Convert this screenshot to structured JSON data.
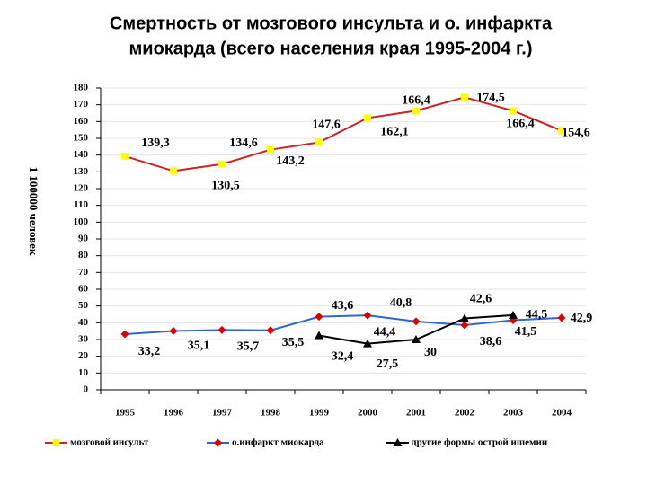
{
  "chart_data": {
    "type": "line",
    "title": [
      "Смертность от мозгового инсульта и о. инфаркта",
      "миокарда (всего населения края 1995-2004 г.)"
    ],
    "y_label": "1 100000 человек",
    "categories": [
      "1995",
      "1996",
      "1997",
      "1998",
      "1999",
      "2000",
      "2001",
      "2002",
      "2003",
      "2004"
    ],
    "series": [
      {
        "name": "мозговой инсульт",
        "color": "#cc2222",
        "marker": "square",
        "marker_color": "#ffff00",
        "values": [
          139.3,
          130.5,
          134.6,
          143.2,
          147.6,
          162.1,
          166.4,
          174.5,
          166.4,
          154.6
        ],
        "value_labels": [
          "139,3",
          "130,5",
          "134,6",
          "143,2",
          "147,6",
          "162,1",
          "166,4",
          "174,5",
          "166,4",
          "154,6"
        ]
      },
      {
        "name": "о.инфаркт миокарда",
        "color": "#3366cc",
        "marker": "diamond",
        "marker_color": "#dd0000",
        "values": [
          33.2,
          35.1,
          35.7,
          35.5,
          43.6,
          44.4,
          40.8,
          38.6,
          41.5,
          42.9
        ],
        "value_labels": [
          "33,2",
          "35,1",
          "35,7",
          "35,5",
          "43,6",
          "44,4",
          "40,8",
          "38,6",
          "41,5",
          "42,9"
        ]
      },
      {
        "name": "другие формы острой ишемии",
        "color": "#000000",
        "marker": "triangle",
        "marker_color": "#000000",
        "values": [
          null,
          null,
          null,
          null,
          32.4,
          27.5,
          30,
          42.6,
          44.5,
          null
        ],
        "value_labels": [
          null,
          null,
          null,
          null,
          "32,4",
          "27,5",
          "30",
          "42,6",
          "44,5",
          null
        ]
      }
    ],
    "ylim": [
      0,
      180
    ],
    "yticks": [
      0,
      10,
      20,
      30,
      40,
      50,
      60,
      70,
      80,
      90,
      100,
      110,
      120,
      130,
      140,
      150,
      160,
      170,
      180
    ],
    "grid": true,
    "legend": "bottom"
  }
}
